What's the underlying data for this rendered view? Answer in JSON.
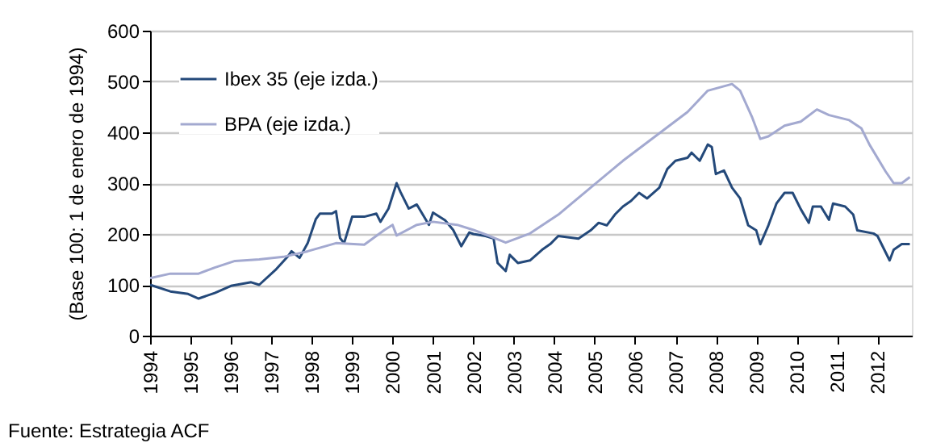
{
  "chart_data": {
    "type": "line",
    "ylabel": "(Base 100: 1 de enero de 1994)",
    "xlim": [
      1994,
      2012.85
    ],
    "xticks": [
      1994,
      1995,
      1996,
      1997,
      1998,
      1999,
      2000,
      2001,
      2002,
      2003,
      2004,
      2005,
      2006,
      2007,
      2008,
      2009,
      2010,
      2011,
      2012
    ],
    "ylim": [
      0,
      600
    ],
    "yticks": [
      0,
      100,
      200,
      300,
      400,
      500,
      600
    ],
    "grid": "y",
    "legend": "top left",
    "annotations": [
      "Fuente: Estrategia ACF"
    ],
    "series": [
      {
        "name": "Ibex 35 (eje izda.)",
        "color": "#24497a",
        "x": [
          1994.0,
          1994.5,
          1994.94,
          1995.2,
          1995.6,
          1996.0,
          1996.5,
          1996.7,
          1997.1,
          1997.4,
          1997.5,
          1997.7,
          1997.9,
          1998.1,
          1998.2,
          1998.5,
          1998.6,
          1998.7,
          1998.8,
          1999.0,
          1999.3,
          1999.6,
          1999.7,
          1999.9,
          2000.1,
          2000.2,
          2000.4,
          2000.6,
          2000.9,
          2001.0,
          2001.3,
          2001.5,
          2001.7,
          2001.9,
          2002.0,
          2002.3,
          2002.5,
          2002.6,
          2002.8,
          2002.9,
          2003.1,
          2003.4,
          2003.7,
          2003.9,
          2004.1,
          2004.6,
          2004.9,
          2005.1,
          2005.3,
          2005.5,
          2005.7,
          2005.9,
          2006.1,
          2006.3,
          2006.6,
          2006.8,
          2007.0,
          2007.3,
          2007.4,
          2007.6,
          2007.8,
          2007.9,
          2008.0,
          2008.2,
          2008.4,
          2008.6,
          2008.8,
          2009.0,
          2009.1,
          2009.3,
          2009.5,
          2009.7,
          2009.9,
          2010.1,
          2010.3,
          2010.4,
          2010.6,
          2010.8,
          2010.9,
          2011.2,
          2011.4,
          2011.5,
          2011.9,
          2012.0,
          2012.3,
          2012.4,
          2012.6,
          2012.8
        ],
        "values": [
          100,
          87,
          82,
          73,
          84,
          98,
          105,
          100,
          129,
          155,
          166,
          153,
          182,
          229,
          240,
          240,
          245,
          192,
          182,
          234,
          234,
          240,
          224,
          250,
          300,
          282,
          250,
          258,
          218,
          242,
          227,
          208,
          176,
          203,
          200,
          196,
          191,
          143,
          127,
          159,
          143,
          148,
          169,
          180,
          196,
          191,
          207,
          222,
          217,
          238,
          254,
          265,
          281,
          270,
          291,
          328,
          344,
          350,
          360,
          344,
          376,
          371,
          318,
          325,
          291,
          270,
          217,
          207,
          180,
          217,
          260,
          281,
          281,
          249,
          222,
          254,
          254,
          228,
          260,
          254,
          238,
          207,
          201,
          196,
          148,
          169,
          180,
          180
        ]
      },
      {
        "name": "BPA (eje izda.)",
        "color": "#a3a9d0",
        "x": [
          1994.0,
          1994.5,
          1995.2,
          1995.6,
          1996.1,
          1996.7,
          1997.3,
          1997.9,
          1998.6,
          1999.3,
          1999.8,
          2000.0,
          2000.1,
          2000.6,
          2001.0,
          2001.6,
          2002.0,
          2002.4,
          2002.8,
          2003.4,
          2004.1,
          2004.9,
          2005.7,
          2006.5,
          2007.3,
          2007.8,
          2008.4,
          2008.6,
          2008.9,
          2009.1,
          2009.3,
          2009.7,
          2010.1,
          2010.5,
          2010.8,
          2011.3,
          2011.6,
          2011.8,
          2012.2,
          2012.4,
          2012.6,
          2012.8
        ],
        "values": [
          113,
          122,
          122,
          134,
          147,
          150,
          155,
          166,
          182,
          179,
          208,
          218,
          197,
          218,
          224,
          218,
          208,
          196,
          183,
          201,
          238,
          291,
          344,
          392,
          440,
          482,
          495,
          482,
          429,
          387,
          392,
          413,
          421,
          445,
          434,
          424,
          408,
          376,
          323,
          300,
          300,
          312
        ]
      }
    ]
  }
}
